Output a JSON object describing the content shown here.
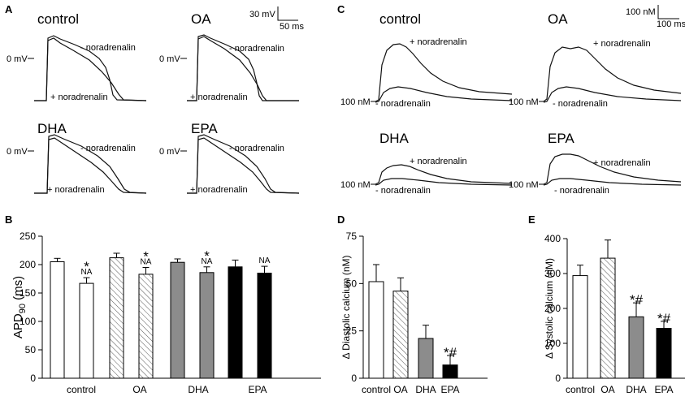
{
  "panels": {
    "A": {
      "label": "A",
      "traces": [
        {
          "title": "control",
          "upper": "- noradrenalin",
          "lower": "+ noradrenalin",
          "zero": "0 mV"
        },
        {
          "title": "OA",
          "upper": "- noradrenalin",
          "lower": "+ noradrenalin",
          "zero": "0 mV"
        },
        {
          "title": "DHA",
          "upper": "- noradrenalin",
          "lower": "+ noradrenalin",
          "zero": "0 mV"
        },
        {
          "title": "EPA",
          "upper": "- noradrenalin",
          "lower": "+ noradrenalin",
          "zero": "0 mV"
        }
      ],
      "scale_v": "30 mV",
      "scale_t": "50 ms"
    },
    "C": {
      "label": "C",
      "traces": [
        {
          "title": "control",
          "upper": "+ noradrenalin",
          "lower": "- noradrenalin",
          "baseline": "100 nM"
        },
        {
          "title": "OA",
          "upper": "+ noradrenalin",
          "lower": "- noradrenalin",
          "baseline": "100 nM"
        },
        {
          "title": "DHA",
          "upper": "+ noradrenalin",
          "lower": "- noradrenalin",
          "baseline": "100 nM"
        },
        {
          "title": "EPA",
          "upper": "+ noradrenalin",
          "lower": "- noradrenalin",
          "baseline": "100 nM"
        }
      ],
      "scale_c": "100 nM",
      "scale_t": "100 ms"
    }
  },
  "chart_data": [
    {
      "id": "B",
      "label": "B",
      "type": "bar",
      "ylabel_main": "APD",
      "ylabel_sub": "90",
      "ylabel_unit": " (ms)",
      "ylim": [
        0,
        250
      ],
      "yticks": [
        0,
        50,
        100,
        150,
        200,
        250
      ],
      "categories": [
        "control",
        "OA",
        "DHA",
        "EPA"
      ],
      "bars": [
        {
          "group": "control",
          "value": 205,
          "err": 6,
          "fill": "white",
          "stars": "",
          "na": ""
        },
        {
          "group": "control",
          "value": 167,
          "err": 10,
          "fill": "white",
          "stars": "*",
          "na": "NA"
        },
        {
          "group": "OA",
          "value": 212,
          "err": 8,
          "fill": "hatch",
          "stars": "",
          "na": ""
        },
        {
          "group": "OA",
          "value": 183,
          "err": 12,
          "fill": "hatch",
          "stars": "*",
          "na": "NA"
        },
        {
          "group": "DHA",
          "value": 204,
          "err": 6,
          "fill": "gray",
          "stars": "",
          "na": ""
        },
        {
          "group": "DHA",
          "value": 186,
          "err": 10,
          "fill": "gray",
          "stars": "*",
          "na": "NA"
        },
        {
          "group": "EPA",
          "value": 196,
          "err": 12,
          "fill": "black",
          "stars": "",
          "na": ""
        },
        {
          "group": "EPA",
          "value": 185,
          "err": 12,
          "fill": "black",
          "stars": "",
          "na": "NA"
        }
      ]
    },
    {
      "id": "D",
      "label": "D",
      "type": "bar",
      "ylabel": "Δ Diastolic calcium (nM)",
      "ylim": [
        0,
        75
      ],
      "yticks": [
        0,
        25,
        50,
        75
      ],
      "categories": [
        "control",
        "OA",
        "DHA",
        "EPA"
      ],
      "bars": [
        {
          "group": "control",
          "value": 51,
          "err": 9,
          "fill": "white",
          "stars": ""
        },
        {
          "group": "OA",
          "value": 46,
          "err": 7,
          "fill": "hatch",
          "stars": ""
        },
        {
          "group": "DHA",
          "value": 21,
          "err": 7,
          "fill": "gray",
          "stars": ""
        },
        {
          "group": "EPA",
          "value": 7,
          "err": 5,
          "fill": "black",
          "stars": "*#"
        }
      ]
    },
    {
      "id": "E",
      "label": "E",
      "type": "bar",
      "ylabel": "Δ Systolic calcium (nM)",
      "ylim": [
        0,
        400
      ],
      "yticks": [
        0,
        100,
        200,
        300,
        400
      ],
      "categories": [
        "control",
        "OA",
        "DHA",
        "EPA"
      ],
      "bars": [
        {
          "group": "control",
          "value": 294,
          "err": 30,
          "fill": "white",
          "stars": ""
        },
        {
          "group": "OA",
          "value": 344,
          "err": 52,
          "fill": "hatch",
          "stars": ""
        },
        {
          "group": "DHA",
          "value": 176,
          "err": 40,
          "fill": "gray",
          "stars": "*#"
        },
        {
          "group": "EPA",
          "value": 143,
          "err": 20,
          "fill": "black",
          "stars": "*#"
        }
      ]
    }
  ]
}
